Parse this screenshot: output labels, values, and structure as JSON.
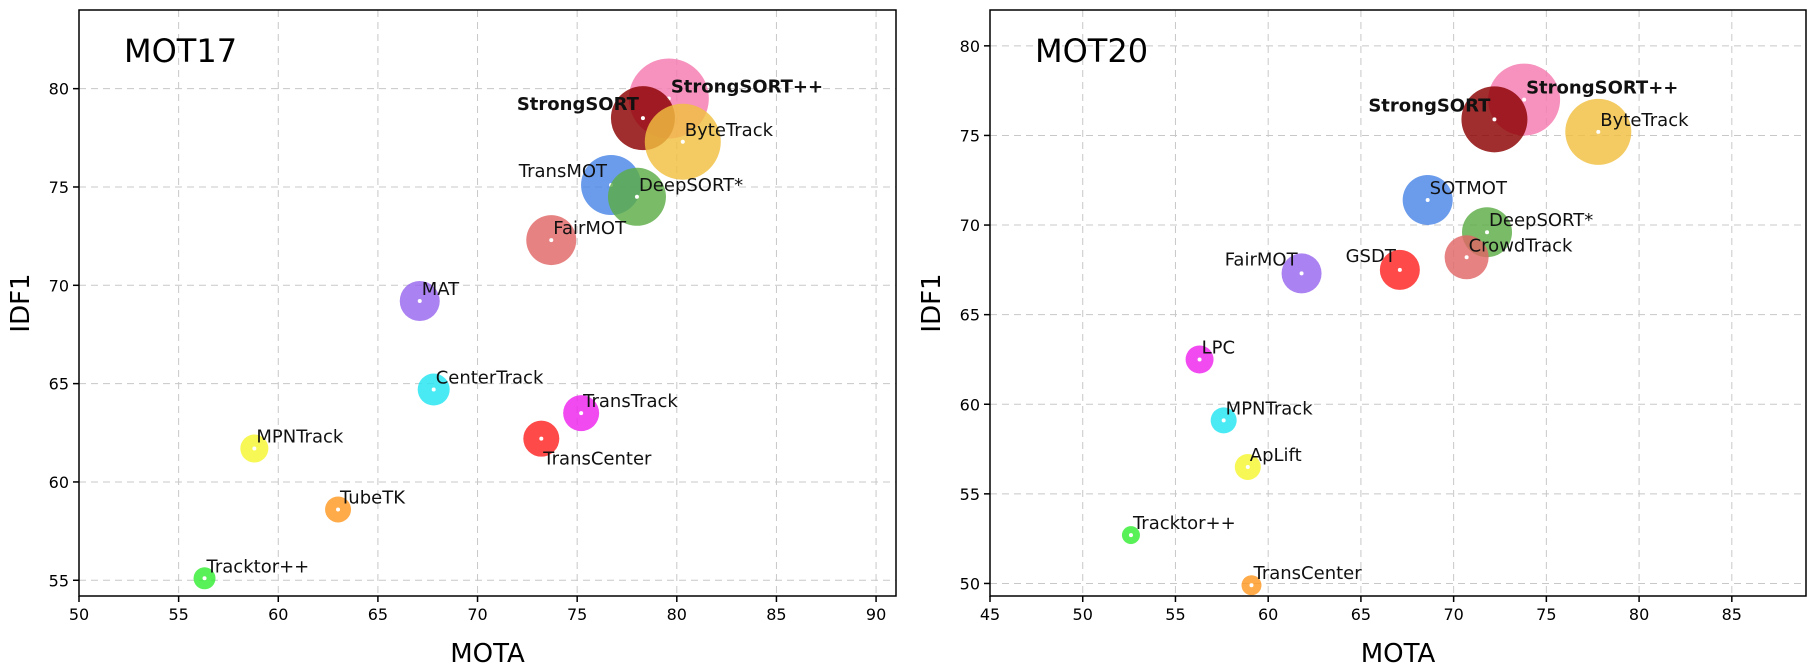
{
  "chart_data": [
    {
      "type": "scatter",
      "title": "MOT17",
      "xlabel": "MOTA",
      "ylabel": "IDF1",
      "xlim": [
        50,
        91
      ],
      "ylim": [
        54.2,
        84
      ],
      "xticks": [
        50,
        55,
        60,
        65,
        70,
        75,
        80,
        85,
        90
      ],
      "yticks": [
        55,
        60,
        65,
        70,
        75,
        80
      ],
      "grid": true,
      "points": [
        {
          "label": "StrongSORT++",
          "x": 79.6,
          "y": 79.5,
          "size": 40,
          "color": "#f57ab0",
          "bold": true,
          "label_pos": "right"
        },
        {
          "label": "StrongSORT",
          "x": 78.3,
          "y": 78.5,
          "size": 32,
          "color": "#8b0000",
          "bold": true,
          "label_pos": "left"
        },
        {
          "label": "ByteTrack",
          "x": 80.3,
          "y": 77.3,
          "size": 38,
          "color": "#f0c040",
          "bold": false,
          "label_pos": "right"
        },
        {
          "label": "TransMOT",
          "x": 76.7,
          "y": 75.1,
          "size": 30,
          "color": "#4a86e8",
          "bold": false,
          "label_pos": "left"
        },
        {
          "label": "DeepSORT*",
          "x": 78.0,
          "y": 74.5,
          "size": 29,
          "color": "#5cac45",
          "bold": false,
          "label_pos": "right"
        },
        {
          "label": "FairMOT",
          "x": 73.7,
          "y": 72.3,
          "size": 25,
          "color": "#e06666",
          "bold": false,
          "label_pos": "right"
        },
        {
          "label": "MAT",
          "x": 67.1,
          "y": 69.2,
          "size": 20,
          "color": "#9966ee",
          "bold": false,
          "label_pos": "right"
        },
        {
          "label": "CenterTrack",
          "x": 67.8,
          "y": 64.7,
          "size": 16,
          "color": "#22e5f2",
          "bold": false,
          "label_pos": "right"
        },
        {
          "label": "TransTrack",
          "x": 75.2,
          "y": 63.5,
          "size": 18,
          "color": "#ee22ee",
          "bold": false,
          "label_pos": "right"
        },
        {
          "label": "TransCenter",
          "x": 73.2,
          "y": 62.2,
          "size": 18,
          "color": "#ff2222",
          "bold": false,
          "label_pos": "below"
        },
        {
          "label": "MPNTrack",
          "x": 58.8,
          "y": 61.7,
          "size": 14,
          "color": "#f5f530",
          "bold": false,
          "label_pos": "right"
        },
        {
          "label": "TubeTK",
          "x": 63.0,
          "y": 58.6,
          "size": 13,
          "color": "#ff9922",
          "bold": false,
          "label_pos": "right"
        },
        {
          "label": "Tracktor++",
          "x": 56.3,
          "y": 55.1,
          "size": 11,
          "color": "#33ee33",
          "bold": false,
          "label_pos": "right"
        }
      ]
    },
    {
      "type": "scatter",
      "title": "MOT20",
      "xlabel": "MOTA",
      "ylabel": "IDF1",
      "xlim": [
        45,
        89
      ],
      "ylim": [
        49.3,
        82
      ],
      "xticks": [
        45,
        50,
        55,
        60,
        65,
        70,
        75,
        80,
        85
      ],
      "yticks": [
        50,
        55,
        60,
        65,
        70,
        75,
        80
      ],
      "grid": true,
      "points": [
        {
          "label": "StrongSORT++",
          "x": 73.8,
          "y": 77.0,
          "size": 36,
          "color": "#f57ab0",
          "bold": true,
          "label_pos": "right"
        },
        {
          "label": "StrongSORT",
          "x": 72.2,
          "y": 75.9,
          "size": 33,
          "color": "#8b0000",
          "bold": true,
          "label_pos": "left"
        },
        {
          "label": "ByteTrack",
          "x": 77.8,
          "y": 75.2,
          "size": 33,
          "color": "#f0c040",
          "bold": false,
          "label_pos": "right"
        },
        {
          "label": "SOTMOT",
          "x": 68.6,
          "y": 71.4,
          "size": 25,
          "color": "#4a86e8",
          "bold": false,
          "label_pos": "right"
        },
        {
          "label": "DeepSORT*",
          "x": 71.8,
          "y": 69.6,
          "size": 25,
          "color": "#5cac45",
          "bold": false,
          "label_pos": "right"
        },
        {
          "label": "CrowdTrack",
          "x": 70.7,
          "y": 68.2,
          "size": 22,
          "color": "#e06666",
          "bold": false,
          "label_pos": "right"
        },
        {
          "label": "GSDT",
          "x": 67.1,
          "y": 67.5,
          "size": 20,
          "color": "#ff2222",
          "bold": false,
          "label_pos": "left"
        },
        {
          "label": "FairMOT",
          "x": 61.8,
          "y": 67.3,
          "size": 20,
          "color": "#9966ee",
          "bold": false,
          "label_pos": "left"
        },
        {
          "label": "LPC",
          "x": 56.3,
          "y": 62.5,
          "size": 14,
          "color": "#ee22ee",
          "bold": false,
          "label_pos": "right"
        },
        {
          "label": "MPNTrack",
          "x": 57.6,
          "y": 59.1,
          "size": 13,
          "color": "#22e5f2",
          "bold": false,
          "label_pos": "right"
        },
        {
          "label": "ApLift",
          "x": 58.9,
          "y": 56.5,
          "size": 13,
          "color": "#f5f530",
          "bold": false,
          "label_pos": "right"
        },
        {
          "label": "Tracktor++",
          "x": 52.6,
          "y": 52.7,
          "size": 9,
          "color": "#33ee33",
          "bold": false,
          "label_pos": "right"
        },
        {
          "label": "TransCenter",
          "x": 59.1,
          "y": 49.9,
          "size": 10,
          "color": "#ff9922",
          "bold": false,
          "label_pos": "right"
        }
      ]
    }
  ]
}
